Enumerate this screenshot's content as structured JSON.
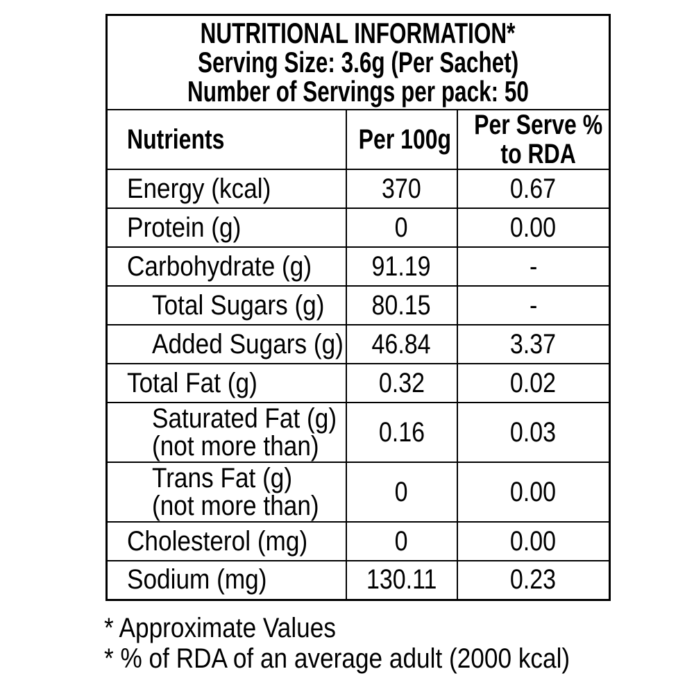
{
  "colors": {
    "background": "#ffffff",
    "text": "#000000",
    "border": "#000000"
  },
  "table": {
    "title_lines": [
      "NUTRITIONAL INFORMATION*",
      "Serving Size: 3.6g (Per Sachet)",
      "Number of Servings per pack: 50"
    ],
    "columns": [
      "Nutrients",
      "Per 100g",
      "Per Serve %\nto RDA"
    ],
    "rows": [
      {
        "nutrient": "Energy (kcal)",
        "per_100g": "370",
        "per_serve_rda": "0.67",
        "indent": false
      },
      {
        "nutrient": "Protein (g)",
        "per_100g": "0",
        "per_serve_rda": "0.00",
        "indent": false
      },
      {
        "nutrient": "Carbohydrate (g)",
        "per_100g": "91.19",
        "per_serve_rda": "-",
        "indent": false
      },
      {
        "nutrient": "Total Sugars (g)",
        "per_100g": "80.15",
        "per_serve_rda": "-",
        "indent": true
      },
      {
        "nutrient": "Added Sugars (g)",
        "per_100g": "46.84",
        "per_serve_rda": "3.37",
        "indent": true
      },
      {
        "nutrient": "Total Fat (g)",
        "per_100g": "0.32",
        "per_serve_rda": "0.02",
        "indent": false
      },
      {
        "nutrient": "Saturated Fat (g)\n(not more than)",
        "per_100g": "0.16",
        "per_serve_rda": "0.03",
        "indent": true
      },
      {
        "nutrient": "Trans Fat (g)\n(not more than)",
        "per_100g": "0",
        "per_serve_rda": "0.00",
        "indent": true
      },
      {
        "nutrient": "Cholesterol (mg)",
        "per_100g": "0",
        "per_serve_rda": "0.00",
        "indent": false
      },
      {
        "nutrient": "Sodium (mg)",
        "per_100g": "130.11",
        "per_serve_rda": "0.23",
        "indent": false
      }
    ],
    "footnotes": [
      "* Approximate Values",
      "* % of RDA of an average adult (2000 kcal)"
    ]
  }
}
